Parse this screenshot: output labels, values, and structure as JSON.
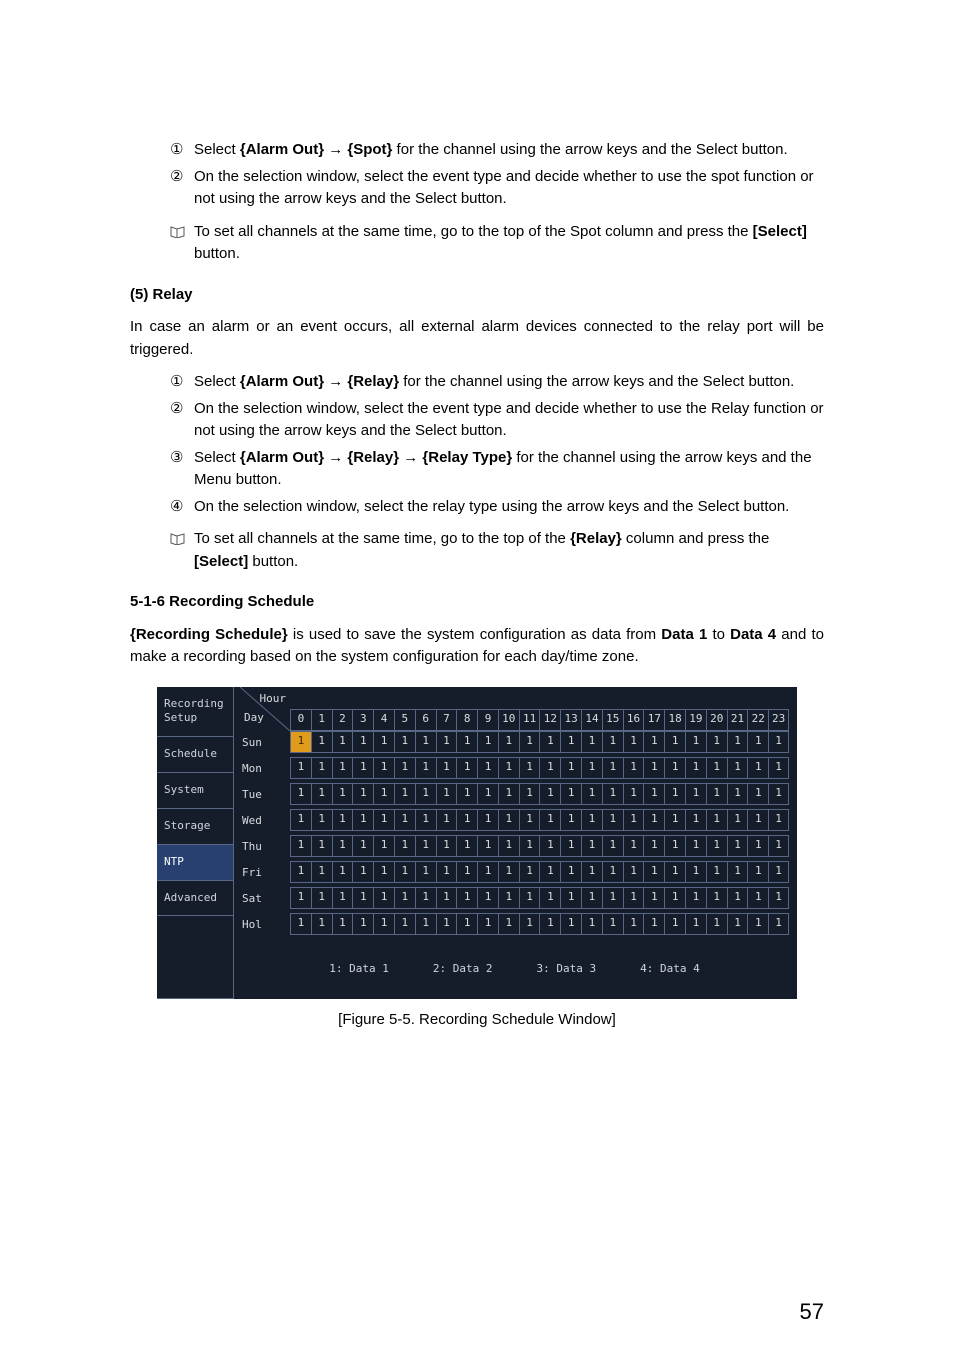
{
  "steps_a": [
    {
      "n": "①",
      "html": "Select <b>{Alarm Out} → {Spot}</b> for the channel using the arrow keys and the Select button."
    },
    {
      "n": "②",
      "html": "On the selection window, select the event type and decide whether to use the spot function or not using the arrow keys and the Select button."
    }
  ],
  "note_a": "To set all channels at the same time, go to the top of the Spot column and press the <b>[Select]</b> button.",
  "heading_relay": "(5)   Relay",
  "relay_intro": "In case an alarm or an event occurs, all external alarm devices connected to the relay port will be triggered.",
  "steps_b": [
    {
      "n": "①",
      "html": "Select <b>{Alarm Out} → {Relay}</b> for the channel using the arrow keys and the Select button."
    },
    {
      "n": "②",
      "html": "On the selection window, select the event type and decide whether to use the Relay function or not using the arrow keys and the Select button."
    },
    {
      "n": "③",
      "html": "Select <b>{Alarm Out} → {Relay} → {Relay Type}</b> for the channel using the arrow keys and the Menu button."
    },
    {
      "n": "④",
      "html": "On the selection window, select the relay type using the arrow keys and the Select button."
    }
  ],
  "note_b": "To set all channels at the same time, go to the top of the <b>{Relay}</b> column and press the <b>[Select]</b> button.",
  "heading_sched": "5-1-6  Recording Schedule",
  "sched_intro": "<b>{Recording Schedule}</b> is used to save the system configuration as data from <b>Data 1</b> to <b>Data 4</b> and to make a recording based on the system configuration for each day/time zone.",
  "figure": {
    "sidebar": [
      "Recording\nSetup",
      "Schedule",
      "System",
      "Storage",
      "NTP",
      "Advanced"
    ],
    "selected_sidebar": 4,
    "corner": {
      "hour": "Hour",
      "day": "Day"
    },
    "hours": [
      "0",
      "1",
      "2",
      "3",
      "4",
      "5",
      "6",
      "7",
      "8",
      "9",
      "10",
      "11",
      "12",
      "13",
      "14",
      "15",
      "16",
      "17",
      "18",
      "19",
      "20",
      "21",
      "22",
      "23"
    ],
    "days": [
      "Sun",
      "Mon",
      "Tue",
      "Wed",
      "Thu",
      "Fri",
      "Sat",
      "Hol"
    ],
    "cell_value": "1",
    "selected_cell": {
      "row": 0,
      "col": 0
    },
    "colors": {
      "cell_sel_bg": "#e09b1b",
      "panel_bg": "#151d2a",
      "grid_border": "#596787",
      "text": "#d8dce0",
      "side_selected_bg": "#274070"
    },
    "legend": [
      "1: Data 1",
      "2: Data 2",
      "3: Data 3",
      "4: Data 4"
    ]
  },
  "caption": "[Figure 5-5. Recording Schedule Window]",
  "page_number": "57"
}
